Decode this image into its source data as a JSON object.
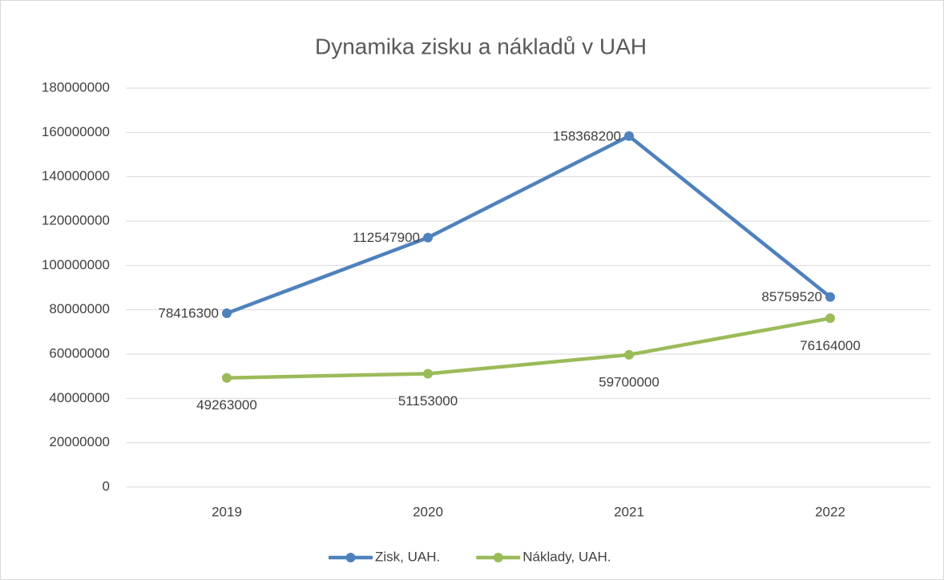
{
  "chart_data": {
    "type": "line",
    "title": "Dynamika zisku a nákladů v UAH",
    "categories": [
      "2019",
      "2020",
      "2021",
      "2022"
    ],
    "series": [
      {
        "name": "Zisk, UAH.",
        "color": "#4f81bd",
        "values": [
          78416300,
          112547900,
          158368200,
          85759520
        ]
      },
      {
        "name": "Náklady, UAH.",
        "color": "#9bbb59",
        "values": [
          49263000,
          51153000,
          59700000,
          76164000
        ]
      }
    ],
    "ylim": [
      0,
      180000000
    ],
    "yticks": [
      0,
      20000000,
      40000000,
      60000000,
      80000000,
      100000000,
      120000000,
      140000000,
      160000000,
      180000000
    ],
    "grid": true,
    "legend": "bottom"
  }
}
